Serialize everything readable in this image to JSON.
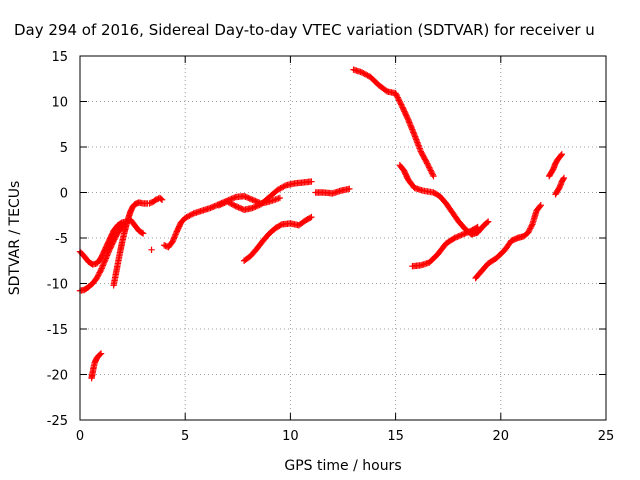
{
  "chart_data": {
    "type": "scatter",
    "title": "Day 294 of 2016, Sidereal Day-to-day VTEC variation (SDTVAR) for receiver u",
    "xlabel": "GPS time / hours",
    "ylabel": "SDTVAR / TECUs",
    "xlim": [
      0,
      25
    ],
    "ylim": [
      -25,
      15
    ],
    "x_ticks": [
      0,
      5,
      10,
      15,
      20,
      25
    ],
    "y_ticks": [
      -25,
      -20,
      -15,
      -10,
      -5,
      0,
      5,
      10,
      15
    ],
    "x_tick_labels": [
      "0",
      "5",
      "10",
      "15",
      "20",
      "25"
    ],
    "y_tick_labels": [
      "-25",
      "-20",
      "-15",
      "-10",
      "-5",
      "0",
      "5",
      "10",
      "15"
    ],
    "grid": true,
    "marker": "+",
    "color": "#ff0000",
    "series": [
      {
        "points": [
          [
            0.0,
            -6.5
          ],
          [
            0.2,
            -7.0
          ],
          [
            0.4,
            -7.6
          ],
          [
            0.6,
            -7.9
          ],
          [
            0.8,
            -7.8
          ],
          [
            1.0,
            -7.2
          ],
          [
            1.2,
            -6.2
          ],
          [
            1.4,
            -5.2
          ],
          [
            1.6,
            -4.2
          ],
          [
            1.8,
            -3.6
          ],
          [
            2.0,
            -3.3
          ],
          [
            2.2,
            -3.2
          ]
        ]
      },
      {
        "points": [
          [
            0.0,
            -10.8
          ],
          [
            0.2,
            -10.7
          ],
          [
            0.4,
            -10.4
          ],
          [
            0.6,
            -10.0
          ],
          [
            0.8,
            -9.4
          ],
          [
            1.0,
            -8.5
          ],
          [
            1.2,
            -7.4
          ],
          [
            1.4,
            -6.3
          ],
          [
            1.6,
            -5.3
          ],
          [
            1.8,
            -4.4
          ],
          [
            2.0,
            -3.7
          ],
          [
            2.2,
            -3.2
          ],
          [
            2.4,
            -3.0
          ],
          [
            2.6,
            -3.6
          ],
          [
            2.8,
            -4.2
          ],
          [
            3.0,
            -4.5
          ]
        ]
      },
      {
        "points": [
          [
            1.6,
            -10.2
          ],
          [
            1.7,
            -9.0
          ],
          [
            1.8,
            -7.8
          ],
          [
            1.9,
            -6.6
          ],
          [
            2.0,
            -5.5
          ],
          [
            2.1,
            -4.5
          ],
          [
            2.2,
            -3.6
          ],
          [
            2.3,
            -2.8
          ],
          [
            2.4,
            -2.1
          ],
          [
            2.5,
            -1.6
          ],
          [
            2.6,
            -1.3
          ],
          [
            2.7,
            -1.2
          ],
          [
            2.8,
            -1.1
          ],
          [
            3.0,
            -1.2
          ],
          [
            3.2,
            -1.2
          ]
        ]
      },
      {
        "points": [
          [
            3.3,
            -1.2
          ],
          [
            3.5,
            -1.0
          ],
          [
            3.6,
            -0.8
          ],
          [
            3.8,
            -0.6
          ],
          [
            3.9,
            -0.8
          ]
        ]
      },
      {
        "points": [
          [
            0.55,
            -20.4
          ],
          [
            0.6,
            -19.8
          ],
          [
            0.65,
            -19.2
          ],
          [
            0.7,
            -18.7
          ],
          [
            0.8,
            -18.2
          ],
          [
            0.9,
            -17.9
          ],
          [
            1.0,
            -17.7
          ]
        ]
      },
      {
        "points": [
          [
            3.4,
            -6.3
          ]
        ]
      },
      {
        "points": [
          [
            4.0,
            -5.8
          ],
          [
            4.2,
            -6.0
          ],
          [
            4.4,
            -5.4
          ],
          [
            4.6,
            -4.3
          ],
          [
            4.8,
            -3.3
          ],
          [
            5.0,
            -2.8
          ],
          [
            5.4,
            -2.3
          ],
          [
            5.8,
            -2.0
          ],
          [
            6.2,
            -1.7
          ],
          [
            6.6,
            -1.3
          ],
          [
            7.0,
            -0.9
          ],
          [
            7.4,
            -0.5
          ],
          [
            7.8,
            -0.4
          ],
          [
            8.2,
            -0.8
          ],
          [
            8.6,
            -1.2
          ],
          [
            9.0,
            -1.0
          ],
          [
            9.5,
            -0.6
          ]
        ]
      },
      {
        "points": [
          [
            6.6,
            -1.4
          ],
          [
            7.0,
            -1.0
          ],
          [
            7.4,
            -1.5
          ],
          [
            7.8,
            -1.9
          ],
          [
            8.2,
            -1.7
          ],
          [
            8.6,
            -1.3
          ],
          [
            9.0,
            -0.5
          ],
          [
            9.4,
            0.3
          ],
          [
            9.8,
            0.8
          ],
          [
            10.2,
            1.0
          ],
          [
            10.6,
            1.1
          ],
          [
            11.0,
            1.2
          ]
        ]
      },
      {
        "points": [
          [
            7.8,
            -7.5
          ],
          [
            8.1,
            -7.0
          ],
          [
            8.4,
            -6.2
          ],
          [
            8.7,
            -5.3
          ],
          [
            9.0,
            -4.5
          ],
          [
            9.3,
            -3.9
          ],
          [
            9.6,
            -3.5
          ],
          [
            10.0,
            -3.4
          ],
          [
            10.4,
            -3.6
          ],
          [
            10.7,
            -3.1
          ],
          [
            11.0,
            -2.7
          ]
        ]
      },
      {
        "points": [
          [
            11.2,
            0.0
          ],
          [
            11.6,
            0.0
          ],
          [
            12.0,
            -0.1
          ],
          [
            12.4,
            0.2
          ],
          [
            12.8,
            0.4
          ]
        ]
      },
      {
        "points": [
          [
            13.0,
            13.5
          ],
          [
            13.4,
            13.2
          ],
          [
            13.8,
            12.7
          ],
          [
            14.2,
            11.8
          ],
          [
            14.6,
            11.1
          ],
          [
            15.0,
            10.9
          ],
          [
            15.3,
            9.5
          ],
          [
            15.6,
            8.0
          ],
          [
            15.9,
            6.3
          ],
          [
            16.2,
            4.5
          ],
          [
            16.5,
            3.2
          ],
          [
            16.8,
            1.8
          ]
        ]
      },
      {
        "points": [
          [
            15.2,
            3.0
          ],
          [
            15.4,
            2.4
          ],
          [
            15.6,
            1.4
          ],
          [
            15.9,
            0.5
          ],
          [
            16.3,
            0.2
          ],
          [
            16.8,
            0.0
          ],
          [
            17.1,
            -0.4
          ],
          [
            17.4,
            -1.2
          ],
          [
            17.7,
            -2.2
          ],
          [
            18.0,
            -3.2
          ],
          [
            18.3,
            -4.0
          ],
          [
            18.6,
            -4.6
          ],
          [
            18.9,
            -4.4
          ],
          [
            19.2,
            -3.6
          ],
          [
            19.4,
            -3.2
          ]
        ]
      },
      {
        "points": [
          [
            15.8,
            -8.1
          ],
          [
            16.2,
            -8.0
          ],
          [
            16.6,
            -7.7
          ],
          [
            17.0,
            -6.8
          ],
          [
            17.4,
            -5.6
          ],
          [
            17.8,
            -5.0
          ],
          [
            18.2,
            -4.6
          ],
          [
            18.6,
            -4.2
          ],
          [
            18.9,
            -3.8
          ]
        ]
      },
      {
        "points": [
          [
            18.8,
            -9.4
          ],
          [
            19.1,
            -8.6
          ],
          [
            19.4,
            -7.8
          ],
          [
            19.8,
            -7.2
          ],
          [
            20.2,
            -6.3
          ],
          [
            20.5,
            -5.3
          ],
          [
            20.8,
            -5.0
          ],
          [
            21.1,
            -4.8
          ],
          [
            21.3,
            -4.4
          ],
          [
            21.5,
            -3.5
          ],
          [
            21.7,
            -2.0
          ],
          [
            21.9,
            -1.4
          ]
        ]
      },
      {
        "points": [
          [
            22.3,
            1.8
          ],
          [
            22.5,
            2.6
          ],
          [
            22.6,
            3.2
          ],
          [
            22.7,
            3.6
          ],
          [
            22.9,
            4.2
          ]
        ]
      },
      {
        "points": [
          [
            22.6,
            -0.2
          ],
          [
            22.7,
            0.2
          ],
          [
            22.8,
            0.6
          ],
          [
            22.9,
            1.2
          ],
          [
            23.0,
            1.6
          ]
        ]
      }
    ]
  }
}
